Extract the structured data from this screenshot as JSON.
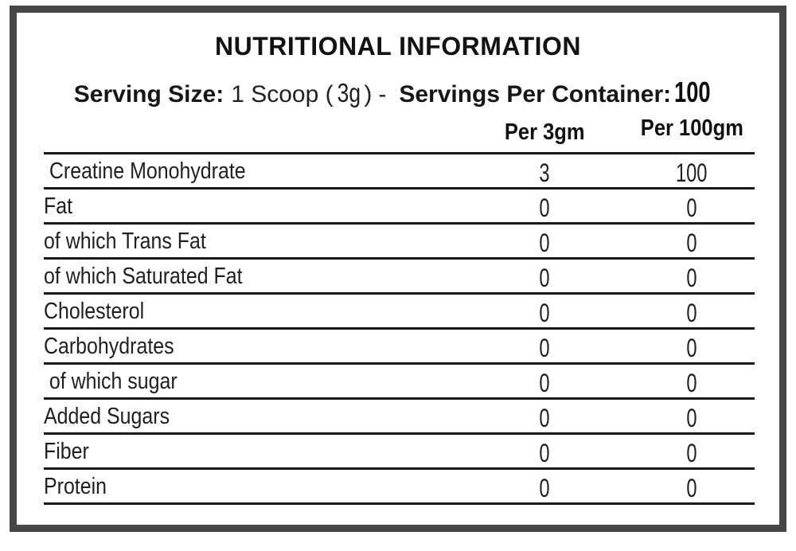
{
  "title": "NUTRITIONAL INFORMATION",
  "serving": {
    "size_label": "Serving Size:",
    "size_value": "1 Scoop (",
    "size_grams": "3g",
    "size_close": ")",
    "separator": "-",
    "container_label": "Servings Per Container:",
    "container_value": "100"
  },
  "table": {
    "columns": [
      "Per 3gm",
      "Per 100gm"
    ],
    "rows": [
      {
        "label": "Creatine Monohydrate",
        "per3": "3",
        "per100": "100",
        "indent": true
      },
      {
        "label": "Fat",
        "per3": "0",
        "per100": "0",
        "indent": false
      },
      {
        "label": "of which Trans Fat",
        "per3": "0",
        "per100": "0",
        "indent": false
      },
      {
        "label": "of which Saturated Fat",
        "per3": "0",
        "per100": "0",
        "indent": false
      },
      {
        "label": "Cholesterol",
        "per3": "0",
        "per100": "0",
        "indent": false
      },
      {
        "label": "Carbohydrates",
        "per3": "0",
        "per100": "0",
        "indent": false
      },
      {
        "label": "of which sugar",
        "per3": "0",
        "per100": "0",
        "indent": true
      },
      {
        "label": "Added Sugars",
        "per3": "0",
        "per100": "0",
        "indent": false
      },
      {
        "label": "Fiber",
        "per3": "0",
        "per100": "0",
        "indent": false
      },
      {
        "label": "Protein",
        "per3": "0",
        "per100": "0",
        "indent": false
      }
    ]
  },
  "colors": {
    "frame_border": "#464646",
    "rule_line": "#1a1a1a",
    "text": "#1a1a1a"
  }
}
